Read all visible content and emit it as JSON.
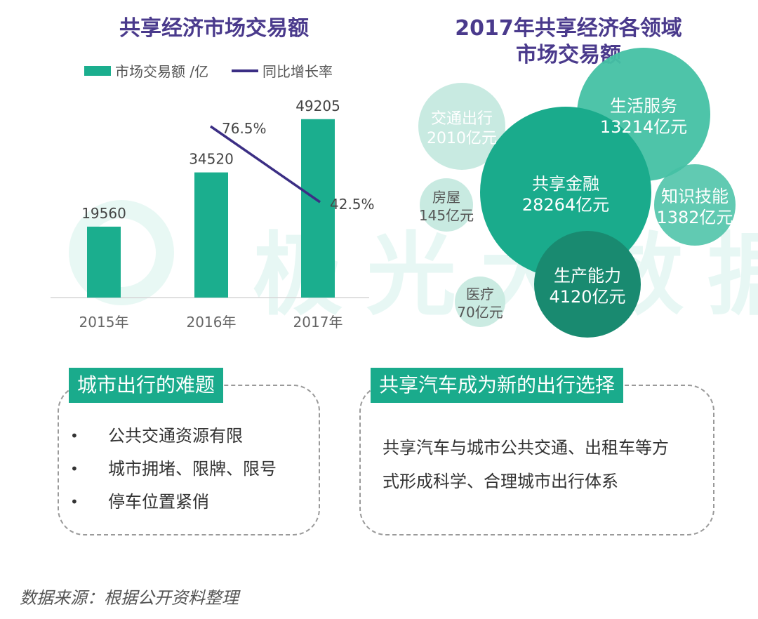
{
  "colors": {
    "bar": "#1bae8e",
    "line": "#3b2e84",
    "title": "#4a3a8c",
    "tag": "#1aab8c",
    "bubble_core": "#1aab8c",
    "bubble_dark": "#198a70",
    "bubble_mid": "#45c1a4",
    "bubble_light": "#9ed9c8",
    "bubble_pale": "#c5e9df"
  },
  "watermark": {
    "text": "极光大数据"
  },
  "chart_data": [
    {
      "type": "bar",
      "title": "共享经济市场交易额",
      "categories": [
        "2015年",
        "2016年",
        "2017年"
      ],
      "series": [
        {
          "name": "市场交易额 /亿",
          "type": "bar",
          "values": [
            19560,
            34520,
            49205
          ],
          "labels": [
            "19560",
            "34520",
            "49205"
          ]
        },
        {
          "name": "同比增长率",
          "type": "line",
          "values": [
            null,
            76.5,
            42.5
          ],
          "labels": [
            "",
            "76.5%",
            "42.5%"
          ]
        }
      ],
      "ylim": [
        0,
        60000
      ],
      "grid": false,
      "legend": "top"
    },
    {
      "type": "bubble",
      "title": "2017年共享经济各领域市场交易额",
      "categories": [
        "共享金融",
        "生活服务",
        "生产能力",
        "交通出行",
        "知识技能",
        "房屋",
        "医疗"
      ],
      "values": [
        28264,
        13214,
        4120,
        2010,
        1382,
        145,
        70
      ],
      "labels": [
        "28264亿元",
        "13214亿元",
        "4120亿元",
        "2010亿元",
        "1382亿元",
        "145亿元",
        "70亿元"
      ],
      "unit": "亿元"
    }
  ],
  "panels": {
    "left": {
      "tag": "城市出行的难题",
      "bullet_char": "•",
      "items": [
        "公共交通资源有限",
        "城市拥堵、限牌、限号",
        "停车位置紧俏"
      ]
    },
    "right": {
      "tag": "共享汽车成为新的出行选择",
      "lines": [
        "共享汽车与城市公共交通、出租车等方",
        "式形成科学、合理城市出行体系"
      ]
    }
  },
  "source": "数据来源：根据公开资料整理"
}
